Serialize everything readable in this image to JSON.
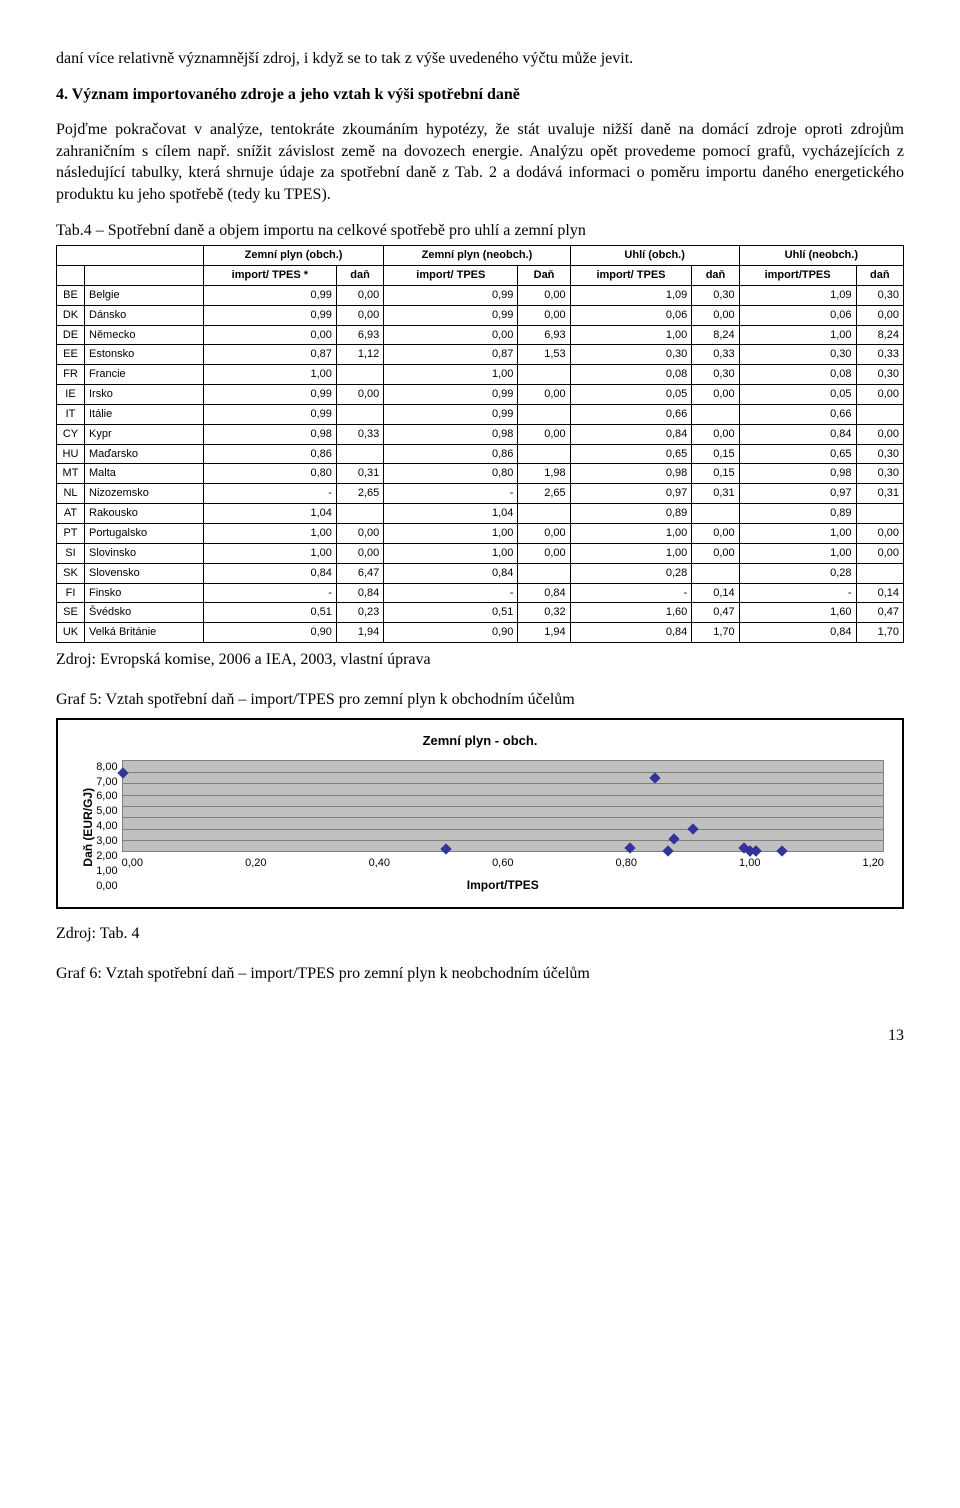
{
  "para1": "daní více relativně významnější zdroj, i když se to tak z výše uvedeného výčtu může jevit.",
  "heading4": "4. Význam importovaného zdroje a jeho vztah k výši spotřební daně",
  "para2": "Pojďme pokračovat v analýze, tentokráte zkoumáním hypotézy, že stát uvaluje nižší daně na domácí zdroje oproti zdrojům zahraničním s cílem např. snížit závislost země na dovozech energie. Analýzu opět provedeme pomocí grafů, vycházejících z následující tabulky, která shrnuje údaje za spotřební daně z Tab. 2 a dodává informaci o poměru importu daného energetického produktu ku jeho spotřebě (tedy ku TPES).",
  "table_caption": "Tab.4 – Spotřební daně a objem importu na celkové spotřebě pro uhlí a zemní plyn",
  "table": {
    "group_headers": [
      "",
      "Zemní plyn (obch.)",
      "Zemní plyn (neobch.)",
      "Uhlí (obch.)",
      "Uhlí (neobch.)"
    ],
    "sub_headers": [
      "",
      "",
      "import/ TPES *",
      "daň",
      "import/ TPES",
      "Daň",
      "import/ TPES",
      "daň",
      "import/TPES",
      "daň"
    ],
    "rows": [
      [
        "BE",
        "Belgie",
        "0,99",
        "0,00",
        "0,99",
        "0,00",
        "1,09",
        "0,30",
        "1,09",
        "0,30"
      ],
      [
        "DK",
        "Dánsko",
        "0,99",
        "0,00",
        "0,99",
        "0,00",
        "0,06",
        "0,00",
        "0,06",
        "0,00"
      ],
      [
        "DE",
        "Německo",
        "0,00",
        "6,93",
        "0,00",
        "6,93",
        "1,00",
        "8,24",
        "1,00",
        "8,24"
      ],
      [
        "EE",
        "Estonsko",
        "0,87",
        "1,12",
        "0,87",
        "1,53",
        "0,30",
        "0,33",
        "0,30",
        "0,33"
      ],
      [
        "FR",
        "Francie",
        "1,00",
        "",
        "1,00",
        "",
        "0,08",
        "0,30",
        "0,08",
        "0,30"
      ],
      [
        "IE",
        "Irsko",
        "0,99",
        "0,00",
        "0,99",
        "0,00",
        "0,05",
        "0,00",
        "0,05",
        "0,00"
      ],
      [
        "IT",
        "Itálie",
        "0,99",
        "",
        "0,99",
        "",
        "0,66",
        "",
        "0,66",
        ""
      ],
      [
        "CY",
        "Kypr",
        "0,98",
        "0,33",
        "0,98",
        "0,00",
        "0,84",
        "0,00",
        "0,84",
        "0,00"
      ],
      [
        "HU",
        "Maďarsko",
        "0,86",
        "",
        "0,86",
        "",
        "0,65",
        "0,15",
        "0,65",
        "0,30"
      ],
      [
        "MT",
        "Malta",
        "0,80",
        "0,31",
        "0,80",
        "1,98",
        "0,98",
        "0,15",
        "0,98",
        "0,30"
      ],
      [
        "NL",
        "Nizozemsko",
        "-",
        "2,65",
        "-",
        "2,65",
        "0,97",
        "0,31",
        "0,97",
        "0,31"
      ],
      [
        "AT",
        "Rakousko",
        "1,04",
        "",
        "1,04",
        "",
        "0,89",
        "",
        "0,89",
        ""
      ],
      [
        "PT",
        "Portugalsko",
        "1,00",
        "0,00",
        "1,00",
        "0,00",
        "1,00",
        "0,00",
        "1,00",
        "0,00"
      ],
      [
        "SI",
        "Slovinsko",
        "1,00",
        "0,00",
        "1,00",
        "0,00",
        "1,00",
        "0,00",
        "1,00",
        "0,00"
      ],
      [
        "SK",
        "Slovensko",
        "0,84",
        "6,47",
        "0,84",
        "",
        "0,28",
        "",
        "0,28",
        ""
      ],
      [
        "FI",
        "Finsko",
        "-",
        "0,84",
        "-",
        "0,84",
        "-",
        "0,14",
        "-",
        "0,14"
      ],
      [
        "SE",
        "Švédsko",
        "0,51",
        "0,23",
        "0,51",
        "0,32",
        "1,60",
        "0,47",
        "1,60",
        "0,47"
      ],
      [
        "UK",
        "Velká Británie",
        "0,90",
        "1,94",
        "0,90",
        "1,94",
        "0,84",
        "1,70",
        "0,84",
        "1,70"
      ]
    ]
  },
  "table_source": "Zdroj: Evropská komise, 2006 a IEA, 2003, vlastní úprava",
  "graf5_caption": "Graf 5: Vztah spotřební daň – import/TPES pro zemní plyn k obchodním účelům",
  "chart": {
    "title": "Zemní plyn - obch.",
    "ylabel": "Daň (EUR/GJ)",
    "xlabel": "Import/TPES",
    "xlim": [
      0.0,
      1.2
    ],
    "ylim": [
      0.0,
      8.0
    ],
    "xticks": [
      "0,00",
      "0,20",
      "0,40",
      "0,60",
      "0,80",
      "1,00",
      "1,20"
    ],
    "yticks": [
      "8,00",
      "7,00",
      "6,00",
      "5,00",
      "4,00",
      "3,00",
      "2,00",
      "1,00",
      "0,00"
    ],
    "marker_color": "#333399",
    "plot_bg": "#c0c0c0",
    "grid_color": "#808080",
    "points": [
      [
        0.0,
        6.93
      ],
      [
        0.51,
        0.23
      ],
      [
        0.8,
        0.31
      ],
      [
        0.84,
        6.47
      ],
      [
        0.86,
        0.0
      ],
      [
        0.87,
        1.12
      ],
      [
        0.9,
        1.94
      ],
      [
        0.98,
        0.33
      ],
      [
        0.99,
        0.0
      ],
      [
        0.99,
        0.0
      ],
      [
        0.99,
        0.0
      ],
      [
        0.99,
        0.0
      ],
      [
        1.0,
        0.0
      ],
      [
        1.0,
        0.0
      ],
      [
        1.0,
        0.0
      ],
      [
        1.04,
        0.0
      ]
    ]
  },
  "chart_source": "Zdroj: Tab. 4",
  "graf6_caption": "Graf 6: Vztah spotřební daň – import/TPES pro zemní plyn k neobchodním účelům",
  "pagenum": "13"
}
